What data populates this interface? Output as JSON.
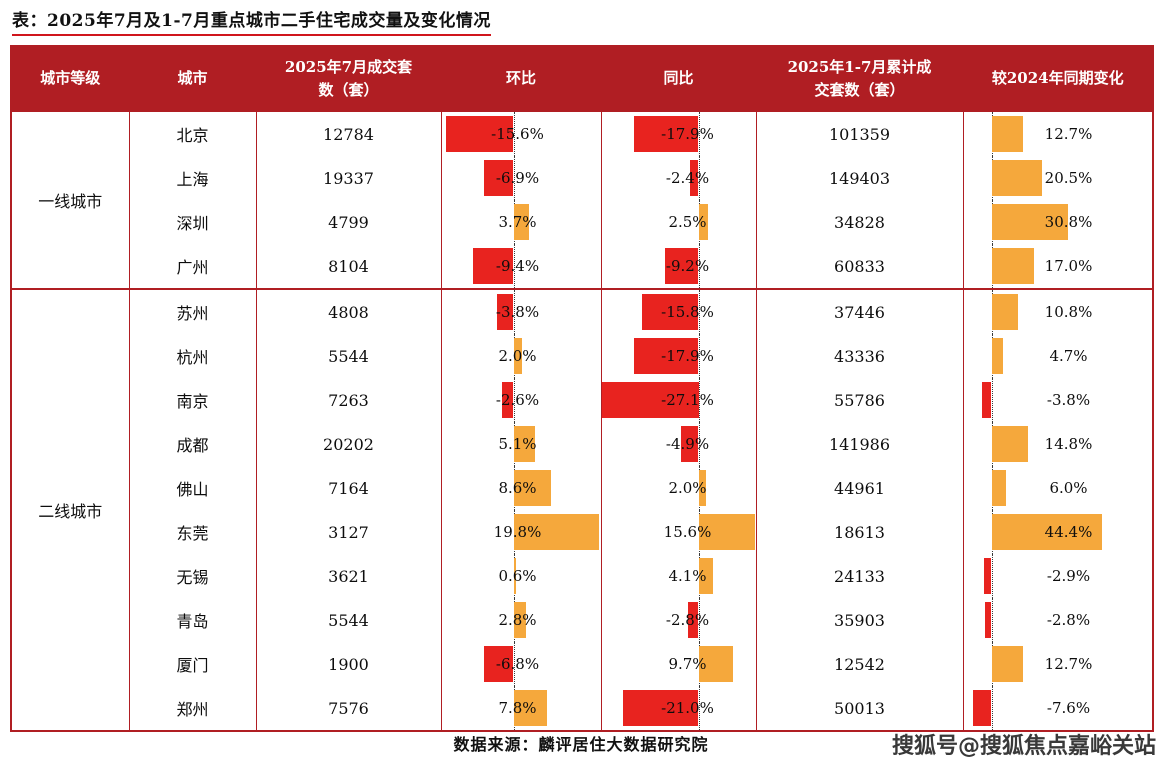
{
  "title": "表：2025年7月及1-7月重点城市二手住宅成交量及变化情况",
  "source": "数据来源：麟评居住大数据研究院",
  "watermark": "搜狐号@搜狐焦点嘉峪关站",
  "colors": {
    "header_bg": "#B01E23",
    "border": "#B01E23",
    "negative_bar": "#E8231F",
    "positive_bar": "#F5A83C"
  },
  "table": {
    "headers": [
      "城市等级",
      "城市",
      "2025年7月成交套\n数（套）",
      "环比",
      "同比",
      "2025年1-7月累计成\n交套数（套）",
      "较2024年同期变化"
    ],
    "groups": [
      {
        "tier": "一线城市",
        "rows": [
          {
            "city": "北京",
            "jul": "12784",
            "mom": -15.6,
            "yoy": -17.9,
            "cum": "101359",
            "chg": 12.7
          },
          {
            "city": "上海",
            "jul": "19337",
            "mom": -6.9,
            "yoy": -2.4,
            "cum": "149403",
            "chg": 20.5
          },
          {
            "city": "深圳",
            "jul": "4799",
            "mom": 3.7,
            "yoy": 2.5,
            "cum": "34828",
            "chg": 30.8
          },
          {
            "city": "广州",
            "jul": "8104",
            "mom": -9.4,
            "yoy": -9.2,
            "cum": "60833",
            "chg": 17.0
          }
        ]
      },
      {
        "tier": "二线城市",
        "rows": [
          {
            "city": "苏州",
            "jul": "4808",
            "mom": -3.8,
            "yoy": -15.8,
            "cum": "37446",
            "chg": 10.8
          },
          {
            "city": "杭州",
            "jul": "5544",
            "mom": 2.0,
            "yoy": -17.9,
            "cum": "43336",
            "chg": 4.7
          },
          {
            "city": "南京",
            "jul": "7263",
            "mom": -2.6,
            "yoy": -27.1,
            "cum": "55786",
            "chg": -3.8
          },
          {
            "city": "成都",
            "jul": "20202",
            "mom": 5.1,
            "yoy": -4.9,
            "cum": "141986",
            "chg": 14.8
          },
          {
            "city": "佛山",
            "jul": "7164",
            "mom": 8.6,
            "yoy": 2.0,
            "cum": "44961",
            "chg": 6.0
          },
          {
            "city": "东莞",
            "jul": "3127",
            "mom": 19.8,
            "yoy": 15.6,
            "cum": "18613",
            "chg": 44.4
          },
          {
            "city": "无锡",
            "jul": "3621",
            "mom": 0.6,
            "yoy": 4.1,
            "cum": "24133",
            "chg": -2.9
          },
          {
            "city": "青岛",
            "jul": "5544",
            "mom": 2.8,
            "yoy": -2.8,
            "cum": "35903",
            "chg": -2.8
          },
          {
            "city": "厦门",
            "jul": "1900",
            "mom": -6.8,
            "yoy": 9.7,
            "cum": "12542",
            "chg": 12.7
          },
          {
            "city": "郑州",
            "jul": "7576",
            "mom": 7.8,
            "yoy": -21.0,
            "cum": "50013",
            "chg": -7.6
          }
        ]
      }
    ]
  },
  "chart_data": {
    "type": "table",
    "title": "2025年7月及1-7月重点城市二手住宅成交量及变化情况",
    "columns": [
      "城市等级",
      "城市",
      "2025年7月成交套数（套）",
      "环比",
      "同比",
      "2025年1-7月累计成交套数（套）",
      "较2024年同期变化"
    ],
    "categories": [
      "北京",
      "上海",
      "深圳",
      "广州",
      "苏州",
      "杭州",
      "南京",
      "成都",
      "佛山",
      "东莞",
      "无锡",
      "青岛",
      "厦门",
      "郑州"
    ],
    "city_tiers": {
      "一线城市": [
        "北京",
        "上海",
        "深圳",
        "广州"
      ],
      "二线城市": [
        "苏州",
        "杭州",
        "南京",
        "成都",
        "佛山",
        "东莞",
        "无锡",
        "青岛",
        "厦门",
        "郑州"
      ]
    },
    "series": [
      {
        "name": "2025年7月成交套数（套）",
        "values": [
          12784,
          19337,
          4799,
          8104,
          4808,
          5544,
          7263,
          20202,
          7164,
          3127,
          3621,
          5544,
          1900,
          7576
        ]
      },
      {
        "name": "环比",
        "unit": "%",
        "render": "bar-in-cell",
        "values": [
          -15.6,
          -6.9,
          3.7,
          -9.4,
          -3.8,
          2.0,
          -2.6,
          5.1,
          8.6,
          19.8,
          0.6,
          2.8,
          -6.8,
          7.8
        ]
      },
      {
        "name": "同比",
        "unit": "%",
        "render": "bar-in-cell",
        "values": [
          -17.9,
          -2.4,
          2.5,
          -9.2,
          -15.8,
          -17.9,
          -27.1,
          -4.9,
          2.0,
          15.6,
          4.1,
          -2.8,
          9.7,
          -21.0
        ]
      },
      {
        "name": "2025年1-7月累计成交套数（套）",
        "values": [
          101359,
          149403,
          34828,
          60833,
          37446,
          43336,
          55786,
          141986,
          44961,
          18613,
          24133,
          35903,
          12542,
          50013
        ]
      },
      {
        "name": "较2024年同期变化",
        "unit": "%",
        "render": "bar-in-cell",
        "values": [
          12.7,
          20.5,
          30.8,
          17.0,
          10.8,
          4.7,
          -3.8,
          14.8,
          6.0,
          44.4,
          -2.9,
          -2.8,
          12.7,
          -7.6
        ]
      }
    ],
    "bar_colors": {
      "positive": "#F5A83C",
      "negative": "#E8231F"
    },
    "legend_position": "none",
    "grid": false
  }
}
